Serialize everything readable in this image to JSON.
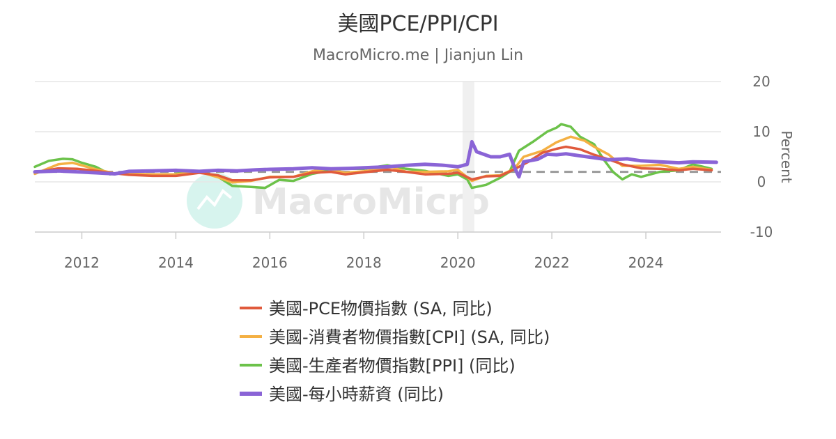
{
  "chart_data": {
    "type": "line",
    "title": "美國PCE/PPI/CPI",
    "subtitle": "MacroMicro.me | Jianjun Lin",
    "ylabel": "Percent",
    "xlim": [
      2011.0,
      2025.6
    ],
    "ylim": [
      -10,
      20
    ],
    "x_ticks": [
      "2012",
      "2014",
      "2016",
      "2018",
      "2020",
      "2022",
      "2024"
    ],
    "y_ticks": [
      "20",
      "10",
      "0",
      "-10"
    ],
    "grid": true,
    "reference_line": 2,
    "shaded_band": [
      2020.1,
      2020.35
    ],
    "watermark": "MacroMicro",
    "legend_position": "bottom",
    "series": [
      {
        "name": "美國-PCE物價指數 (SA, 同比)",
        "color": "#e05a3c",
        "points": [
          [
            2011.0,
            1.9
          ],
          [
            2011.5,
            2.7
          ],
          [
            2011.9,
            2.6
          ],
          [
            2012.3,
            2.2
          ],
          [
            2012.7,
            1.7
          ],
          [
            2013.0,
            1.4
          ],
          [
            2013.5,
            1.2
          ],
          [
            2014.0,
            1.2
          ],
          [
            2014.5,
            1.8
          ],
          [
            2014.9,
            1.3
          ],
          [
            2015.2,
            0.3
          ],
          [
            2015.6,
            0.3
          ],
          [
            2016.0,
            0.9
          ],
          [
            2016.5,
            1.0
          ],
          [
            2016.9,
            1.8
          ],
          [
            2017.3,
            2.0
          ],
          [
            2017.6,
            1.5
          ],
          [
            2018.0,
            1.9
          ],
          [
            2018.5,
            2.4
          ],
          [
            2018.9,
            2.0
          ],
          [
            2019.3,
            1.5
          ],
          [
            2019.8,
            1.6
          ],
          [
            2020.0,
            1.8
          ],
          [
            2020.3,
            0.5
          ],
          [
            2020.6,
            1.1
          ],
          [
            2020.9,
            1.2
          ],
          [
            2021.2,
            2.5
          ],
          [
            2021.5,
            4.0
          ],
          [
            2021.8,
            5.8
          ],
          [
            2022.1,
            6.6
          ],
          [
            2022.3,
            7.0
          ],
          [
            2022.6,
            6.5
          ],
          [
            2022.9,
            5.4
          ],
          [
            2023.2,
            4.5
          ],
          [
            2023.5,
            3.5
          ],
          [
            2023.9,
            2.7
          ],
          [
            2024.3,
            2.6
          ],
          [
            2024.7,
            2.3
          ],
          [
            2025.0,
            2.6
          ],
          [
            2025.4,
            2.3
          ]
        ]
      },
      {
        "name": "美國-消費者物價指數[CPI] (SA, 同比)",
        "color": "#f4b043",
        "points": [
          [
            2011.0,
            1.6
          ],
          [
            2011.5,
            3.5
          ],
          [
            2011.8,
            3.8
          ],
          [
            2012.3,
            2.5
          ],
          [
            2012.7,
            1.7
          ],
          [
            2013.0,
            1.6
          ],
          [
            2013.5,
            1.5
          ],
          [
            2014.0,
            1.5
          ],
          [
            2014.5,
            2.0
          ],
          [
            2014.9,
            0.9
          ],
          [
            2015.2,
            -0.1
          ],
          [
            2015.6,
            0.2
          ],
          [
            2016.0,
            1.0
          ],
          [
            2016.5,
            1.0
          ],
          [
            2016.9,
            2.1
          ],
          [
            2017.2,
            2.6
          ],
          [
            2017.6,
            1.8
          ],
          [
            2018.0,
            2.1
          ],
          [
            2018.6,
            2.9
          ],
          [
            2018.9,
            2.0
          ],
          [
            2019.3,
            2.0
          ],
          [
            2019.8,
            2.1
          ],
          [
            2020.0,
            2.4
          ],
          [
            2020.3,
            0.2
          ],
          [
            2020.6,
            1.2
          ],
          [
            2020.9,
            1.3
          ],
          [
            2021.2,
            2.6
          ],
          [
            2021.4,
            5.0
          ],
          [
            2021.8,
            6.2
          ],
          [
            2022.1,
            7.9
          ],
          [
            2022.4,
            9.0
          ],
          [
            2022.7,
            8.2
          ],
          [
            2022.9,
            7.0
          ],
          [
            2023.2,
            5.5
          ],
          [
            2023.5,
            3.2
          ],
          [
            2023.9,
            3.2
          ],
          [
            2024.3,
            3.4
          ],
          [
            2024.7,
            2.6
          ],
          [
            2025.0,
            3.0
          ],
          [
            2025.4,
            2.4
          ]
        ]
      },
      {
        "name": "美國-生產者物價指數[PPI] (同比)",
        "color": "#6cc24a",
        "points": [
          [
            2011.0,
            3.0
          ],
          [
            2011.3,
            4.2
          ],
          [
            2011.6,
            4.6
          ],
          [
            2011.8,
            4.5
          ],
          [
            2012.0,
            3.8
          ],
          [
            2012.3,
            3.0
          ],
          [
            2012.6,
            1.5
          ],
          [
            2012.9,
            2.0
          ],
          [
            2013.2,
            1.5
          ],
          [
            2013.5,
            1.4
          ],
          [
            2013.9,
            1.4
          ],
          [
            2014.3,
            2.0
          ],
          [
            2014.6,
            1.9
          ],
          [
            2014.9,
            1.0
          ],
          [
            2015.2,
            -0.8
          ],
          [
            2015.6,
            -1.0
          ],
          [
            2015.9,
            -1.2
          ],
          [
            2016.2,
            0.4
          ],
          [
            2016.5,
            0.2
          ],
          [
            2016.9,
            1.6
          ],
          [
            2017.3,
            2.3
          ],
          [
            2017.6,
            2.6
          ],
          [
            2018.0,
            2.6
          ],
          [
            2018.5,
            3.3
          ],
          [
            2018.9,
            2.6
          ],
          [
            2019.3,
            2.2
          ],
          [
            2019.8,
            1.2
          ],
          [
            2020.0,
            1.5
          ],
          [
            2020.2,
            0.5
          ],
          [
            2020.3,
            -1.2
          ],
          [
            2020.6,
            -0.6
          ],
          [
            2020.9,
            0.8
          ],
          [
            2021.1,
            2.0
          ],
          [
            2021.3,
            6.2
          ],
          [
            2021.6,
            8.0
          ],
          [
            2021.9,
            10.0
          ],
          [
            2022.1,
            10.8
          ],
          [
            2022.2,
            11.5
          ],
          [
            2022.4,
            11.0
          ],
          [
            2022.6,
            9.0
          ],
          [
            2022.9,
            7.5
          ],
          [
            2023.1,
            4.5
          ],
          [
            2023.3,
            2.0
          ],
          [
            2023.5,
            0.5
          ],
          [
            2023.7,
            1.5
          ],
          [
            2023.9,
            1.0
          ],
          [
            2024.3,
            2.0
          ],
          [
            2024.7,
            2.3
          ],
          [
            2025.0,
            3.5
          ],
          [
            2025.4,
            2.6
          ]
        ]
      },
      {
        "name": "美國-每小時薪資 (同比)",
        "color": "#8a64d6",
        "points": [
          [
            2011.0,
            2.0
          ],
          [
            2011.5,
            2.2
          ],
          [
            2011.9,
            2.0
          ],
          [
            2012.3,
            1.8
          ],
          [
            2012.7,
            1.6
          ],
          [
            2013.0,
            2.1
          ],
          [
            2013.5,
            2.2
          ],
          [
            2014.0,
            2.3
          ],
          [
            2014.5,
            2.1
          ],
          [
            2014.9,
            2.3
          ],
          [
            2015.3,
            2.2
          ],
          [
            2015.7,
            2.4
          ],
          [
            2016.0,
            2.5
          ],
          [
            2016.5,
            2.6
          ],
          [
            2016.9,
            2.8
          ],
          [
            2017.3,
            2.6
          ],
          [
            2017.7,
            2.7
          ],
          [
            2018.0,
            2.8
          ],
          [
            2018.5,
            3.0
          ],
          [
            2018.9,
            3.3
          ],
          [
            2019.3,
            3.5
          ],
          [
            2019.7,
            3.3
          ],
          [
            2020.0,
            3.0
          ],
          [
            2020.2,
            3.5
          ],
          [
            2020.3,
            8.0
          ],
          [
            2020.4,
            6.0
          ],
          [
            2020.7,
            5.0
          ],
          [
            2020.9,
            5.0
          ],
          [
            2021.1,
            5.5
          ],
          [
            2021.2,
            3.0
          ],
          [
            2021.3,
            1.0
          ],
          [
            2021.4,
            4.0
          ],
          [
            2021.7,
            4.5
          ],
          [
            2021.9,
            5.5
          ],
          [
            2022.1,
            5.4
          ],
          [
            2022.3,
            5.6
          ],
          [
            2022.6,
            5.2
          ],
          [
            2022.9,
            4.8
          ],
          [
            2023.2,
            4.4
          ],
          [
            2023.6,
            4.6
          ],
          [
            2023.9,
            4.2
          ],
          [
            2024.3,
            4.0
          ],
          [
            2024.7,
            3.8
          ],
          [
            2025.0,
            4.0
          ],
          [
            2025.5,
            3.9
          ]
        ]
      }
    ]
  }
}
